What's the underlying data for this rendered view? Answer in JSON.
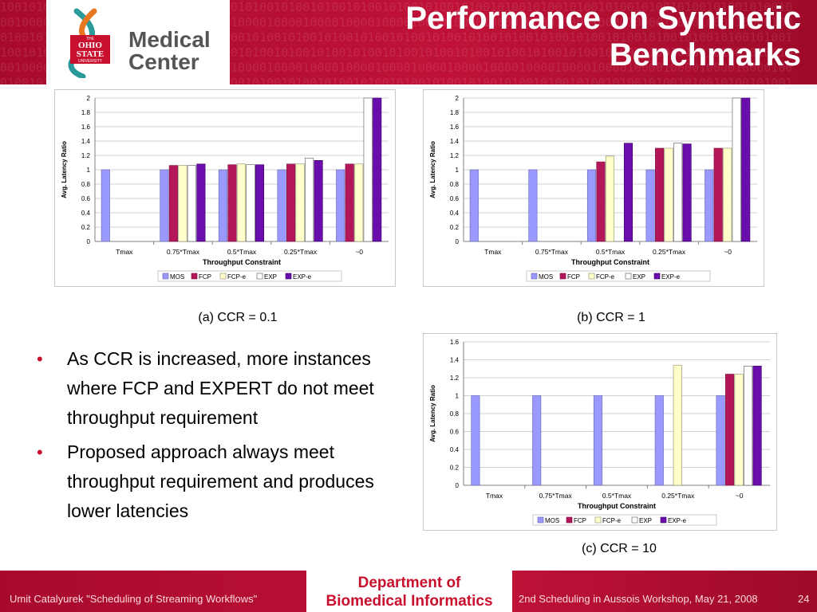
{
  "header": {
    "title": "Performance on Synthetic Benchmarks",
    "logo_small": "THE",
    "logo_ohio": "OHIO",
    "logo_state": "STATE",
    "logo_univ": "UNIVERSITY",
    "logo_name_line1": "Medical",
    "logo_name_line2": "Center"
  },
  "bullets": [
    "As CCR is increased, more instances where FCP and EXPERT do not meet throughput requirement",
    "Proposed approach always meet throughput requirement and produces lower latencies"
  ],
  "footer": {
    "left": "Umit Catalyurek \"Scheduling of Streaming Workflows\"",
    "dept_line1": "Department of",
    "dept_line2": "Biomedical Informatics",
    "right": "2nd Scheduling in Aussois Workshop, May 21, 2008",
    "page": "24"
  },
  "colors": {
    "MOS": "#9999ff",
    "FCP": "#b3175a",
    "FCP-e": "#ffffcc",
    "EXP": "#ffffff",
    "EXP-e": "#6a0dad",
    "accent": "#c8102e"
  },
  "chart_data": [
    {
      "type": "bar",
      "caption": "(a) CCR = 0.1",
      "categories": [
        "Tmax",
        "0.75*Tmax",
        "0.5*Tmax",
        "0.25*Tmax",
        "~0"
      ],
      "series": [
        {
          "name": "MOS",
          "values": [
            1,
            1,
            1,
            1,
            1
          ]
        },
        {
          "name": "FCP",
          "values": [
            null,
            1.06,
            1.07,
            1.08,
            1.08
          ]
        },
        {
          "name": "FCP-e",
          "values": [
            null,
            1.06,
            1.08,
            1.08,
            1.08
          ]
        },
        {
          "name": "EXP",
          "values": [
            null,
            1.06,
            1.07,
            1.16,
            2.0
          ]
        },
        {
          "name": "EXP-e",
          "values": [
            null,
            1.08,
            1.07,
            1.13,
            2.0
          ]
        }
      ],
      "xlabel": "Throughput Constraint",
      "ylabel": "Avg. Latency Ratio",
      "ylim": [
        0,
        2
      ],
      "yticks": [
        "0",
        "0.2",
        "0.4",
        "0.6",
        "0.8",
        "1",
        "1.2",
        "1.4",
        "1.6",
        "1.8",
        "2"
      ],
      "legend": "bottom"
    },
    {
      "type": "bar",
      "caption": "(b) CCR = 1",
      "categories": [
        "Tmax",
        "0.75*Tmax",
        "0.5*Tmax",
        "0.25*Tmax",
        "~0"
      ],
      "series": [
        {
          "name": "MOS",
          "values": [
            1,
            1,
            1,
            1,
            1
          ]
        },
        {
          "name": "FCP",
          "values": [
            null,
            null,
            1.11,
            1.3,
            1.3
          ]
        },
        {
          "name": "FCP-e",
          "values": [
            null,
            null,
            1.19,
            1.3,
            1.3
          ]
        },
        {
          "name": "EXP",
          "values": [
            null,
            null,
            null,
            1.37,
            2.0
          ]
        },
        {
          "name": "EXP-e",
          "values": [
            null,
            null,
            1.37,
            1.36,
            2.0
          ]
        }
      ],
      "xlabel": "Throughput Constraint",
      "ylabel": "Avg. Latency Ratio",
      "ylim": [
        0,
        2
      ],
      "yticks": [
        "0",
        "0.2",
        "0.4",
        "0.6",
        "0.8",
        "1",
        "1.2",
        "1.4",
        "1.6",
        "1.8",
        "2"
      ],
      "legend": "bottom"
    },
    {
      "type": "bar",
      "caption": "(c) CCR = 10",
      "categories": [
        "Tmax",
        "0.75*Tmax",
        "0.5*Tmax",
        "0.25*Tmax",
        "~0"
      ],
      "series": [
        {
          "name": "MOS",
          "values": [
            1,
            1,
            1,
            1,
            1
          ]
        },
        {
          "name": "FCP",
          "values": [
            null,
            null,
            null,
            null,
            1.24
          ]
        },
        {
          "name": "FCP-e",
          "values": [
            null,
            null,
            null,
            1.34,
            1.24
          ]
        },
        {
          "name": "EXP",
          "values": [
            null,
            null,
            null,
            null,
            1.33
          ]
        },
        {
          "name": "EXP-e",
          "values": [
            null,
            null,
            null,
            null,
            1.33
          ]
        }
      ],
      "xlabel": "Throughput Constraint",
      "ylabel": "Avg. Latency Ratio",
      "ylim": [
        0,
        1.6
      ],
      "yticks": [
        "0",
        "0.2",
        "0.4",
        "0.6",
        "0.8",
        "1",
        "1.2",
        "1.4",
        "1.6"
      ],
      "legend": "bottom"
    }
  ]
}
